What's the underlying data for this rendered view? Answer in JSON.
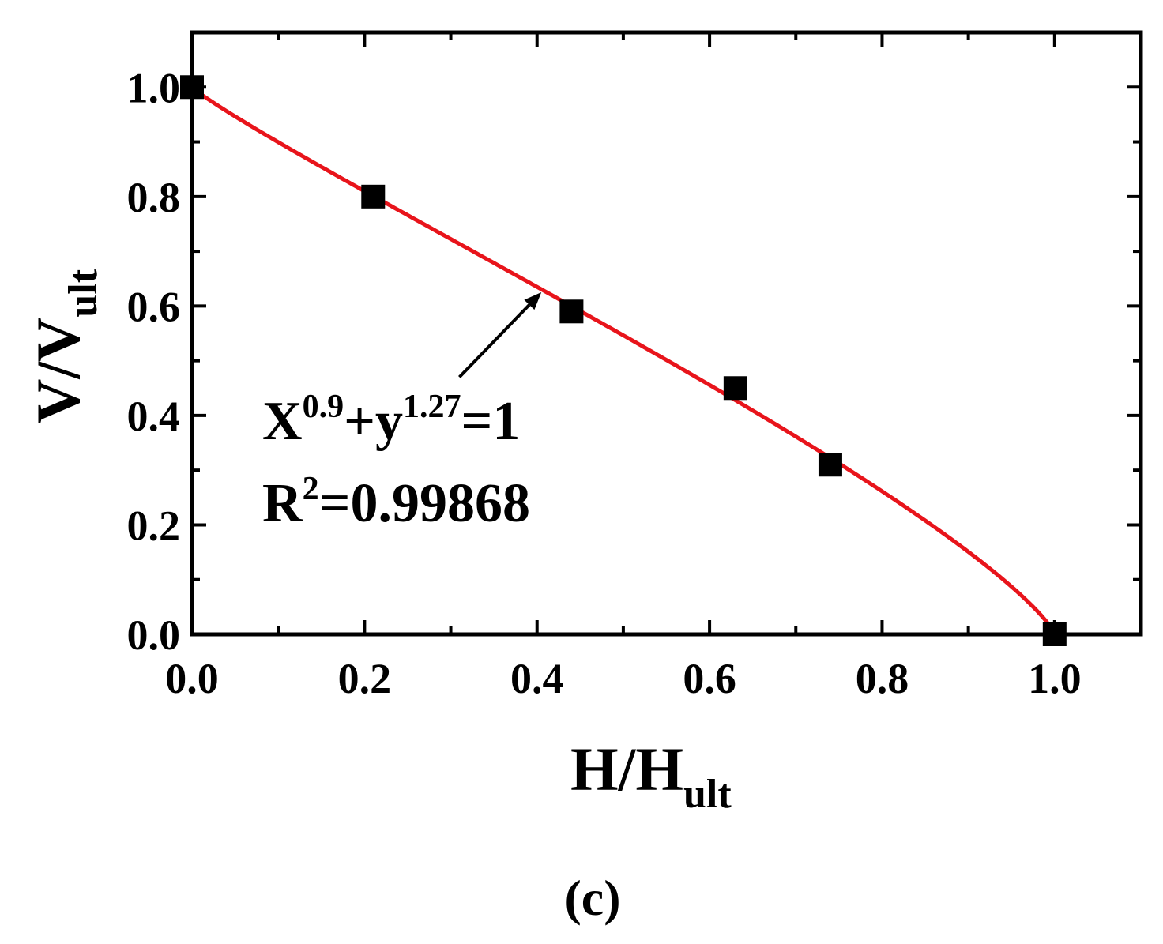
{
  "chart_data": {
    "type": "scatter",
    "xlabel": {
      "main": "H/H",
      "sub": "ult"
    },
    "ylabel": {
      "main": "V/V",
      "sub": "ult"
    },
    "xlim": [
      0.0,
      1.1
    ],
    "ylim": [
      0.0,
      1.1
    ],
    "xticks": [
      0.0,
      0.2,
      0.4,
      0.6,
      0.8,
      1.0
    ],
    "yticks": [
      0.0,
      0.2,
      0.4,
      0.6,
      0.8,
      1.0
    ],
    "tick_labels": [
      "0.0",
      "0.2",
      "0.4",
      "0.6",
      "0.8",
      "1.0"
    ],
    "grid": false,
    "series": [
      {
        "kind": "scatter",
        "marker": "square",
        "color": "#000000",
        "x": [
          0.0,
          0.21,
          0.44,
          0.63,
          0.74,
          1.0
        ],
        "y": [
          1.0,
          0.8,
          0.59,
          0.45,
          0.31,
          0.0
        ]
      },
      {
        "kind": "fit-curve",
        "color": "#e8141b",
        "exponent_x": 0.9,
        "exponent_y": 1.27
      }
    ],
    "annotation": {
      "equation": {
        "a": "X",
        "a_exp": "0.9",
        "op": "+y",
        "b_exp": "1.27",
        "rhs": "=1"
      },
      "r2": {
        "a": "R",
        "a_exp": "2",
        "rest": "=0.99868"
      },
      "arrow_from": [
        0.31,
        0.47
      ],
      "arrow_to": [
        0.405,
        0.625
      ]
    },
    "panel_label": "(c)"
  }
}
